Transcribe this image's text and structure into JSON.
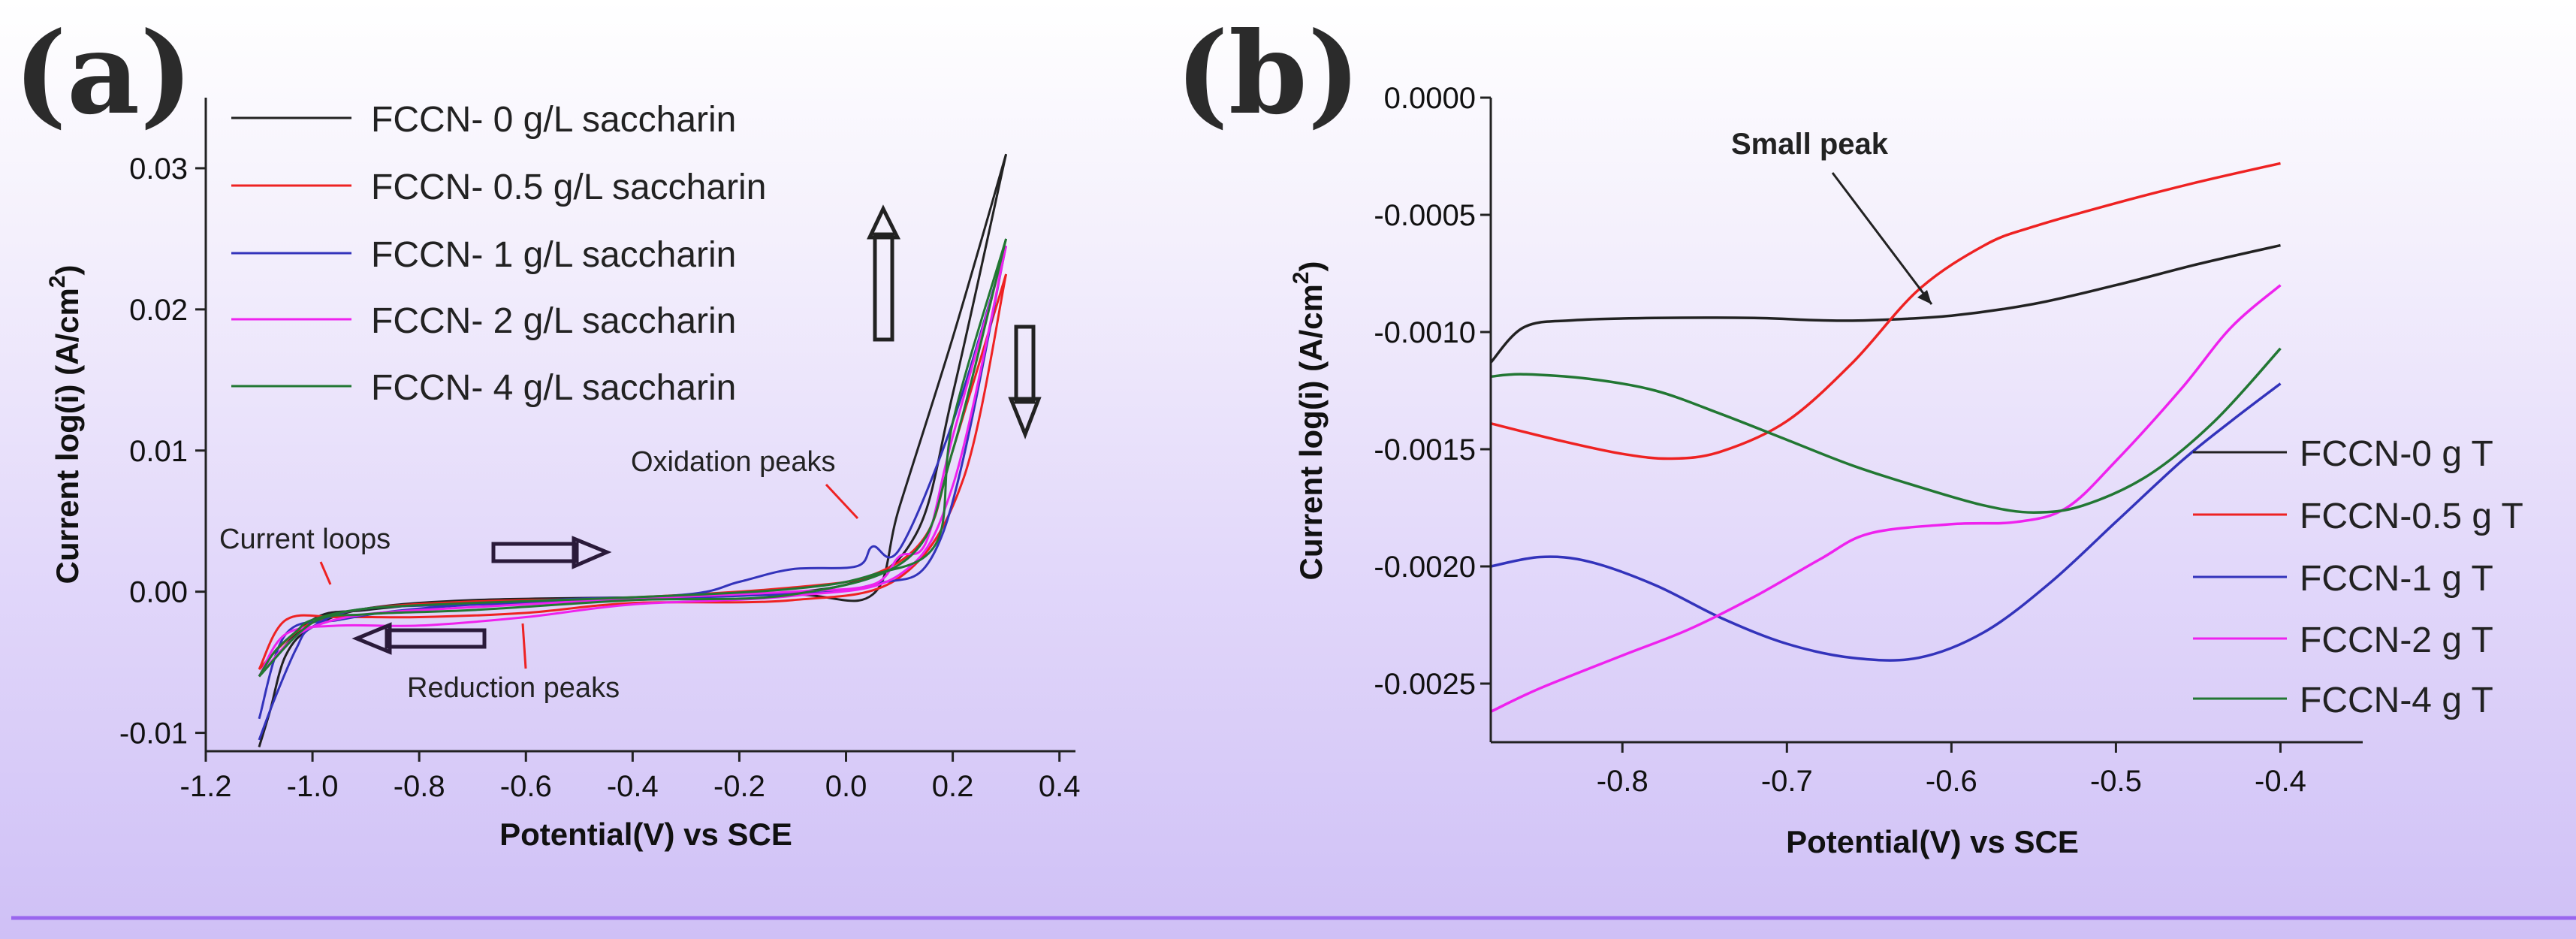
{
  "panels": {
    "a": {
      "label": "(a)",
      "chart_data": {
        "type": "line",
        "xlabel": "Potential(V)  vs SCE",
        "ylabel_main": "Current log(i)  (A/cm",
        "ylabel_sup": "2",
        "ylabel_end": ")",
        "xlim": [
          -1.2,
          0.43
        ],
        "ylim": [
          -0.0113,
          0.035
        ],
        "xticks": [
          "-1.2",
          "-1.0",
          "-0.8",
          "-0.6",
          "-0.4",
          "-0.2",
          "0.0",
          "0.2",
          "0.4"
        ],
        "yticks": [
          "-0.01",
          "0.00",
          "0.01",
          "0.02",
          "0.03"
        ],
        "legend_position": "top-left",
        "series": [
          {
            "name": "FCCN- 0 g/L saccharin",
            "color": "#222222",
            "forward": [
              [
                -1.1,
                -0.011
              ],
              [
                -1.08,
                -0.0085
              ],
              [
                -1.05,
                -0.0045
              ],
              [
                -1.0,
                -0.0025
              ],
              [
                -0.9,
                -0.0012
              ],
              [
                -0.7,
                -0.0006
              ],
              [
                -0.4,
                -0.0004
              ],
              [
                -0.1,
                -0.0002
              ],
              [
                0.05,
                -0.0002
              ],
              [
                0.1,
                0.006
              ],
              [
                0.2,
                0.018
              ],
              [
                0.3,
                0.031
              ]
            ],
            "reverse": [
              [
                0.3,
                0.031
              ],
              [
                0.2,
                0.014
              ],
              [
                0.13,
                0.004
              ],
              [
                0.0,
                0.0005
              ],
              [
                -0.3,
                -0.0003
              ],
              [
                -0.7,
                -0.0007
              ],
              [
                -0.9,
                -0.0013
              ],
              [
                -1.0,
                -0.002
              ],
              [
                -1.1,
                -0.006
              ]
            ]
          },
          {
            "name": "FCCN- 0.5 g/L saccharin",
            "color": "#ee2222",
            "forward": [
              [
                -1.1,
                -0.0055
              ],
              [
                -1.05,
                -0.0035
              ],
              [
                -1.0,
                -0.0022
              ],
              [
                -0.9,
                -0.0012
              ],
              [
                -0.7,
                -0.0007
              ],
              [
                -0.4,
                -0.0004
              ],
              [
                -0.1,
                0.0003
              ],
              [
                0.05,
                0.0012
              ],
              [
                0.15,
                0.004
              ],
              [
                0.2,
                0.01
              ],
              [
                0.3,
                0.0225
              ]
            ],
            "reverse": [
              [
                0.3,
                0.0225
              ],
              [
                0.22,
                0.008
              ],
              [
                0.1,
                0.001
              ],
              [
                -0.1,
                -0.0006
              ],
              [
                -0.4,
                -0.0008
              ],
              [
                -0.6,
                -0.0015
              ],
              [
                -0.8,
                -0.0018
              ],
              [
                -0.95,
                -0.0018
              ],
              [
                -1.05,
                -0.002
              ],
              [
                -1.1,
                -0.0055
              ]
            ]
          },
          {
            "name": "FCCN- 1 g/L saccharin",
            "color": "#3333bb",
            "forward": [
              [
                -1.1,
                -0.0105
              ],
              [
                -1.07,
                -0.0075
              ],
              [
                -1.03,
                -0.004
              ],
              [
                -1.0,
                -0.0025
              ],
              [
                -0.9,
                -0.0012
              ],
              [
                -0.6,
                -0.0008
              ],
              [
                -0.3,
                -0.0002
              ],
              [
                -0.2,
                0.0007
              ],
              [
                -0.1,
                0.0016
              ],
              [
                0.02,
                0.0018
              ],
              [
                0.05,
                0.0032
              ],
              [
                0.1,
                0.003
              ],
              [
                0.2,
                0.012
              ],
              [
                0.3,
                0.0245
              ]
            ],
            "reverse": [
              [
                0.3,
                0.0245
              ],
              [
                0.18,
                0.004
              ],
              [
                0.05,
                0.0005
              ],
              [
                -0.2,
                -0.0003
              ],
              [
                -0.5,
                -0.0005
              ],
              [
                -0.8,
                -0.0012
              ],
              [
                -0.95,
                -0.002
              ],
              [
                -1.05,
                -0.003
              ],
              [
                -1.1,
                -0.009
              ]
            ]
          },
          {
            "name": "FCCN- 2 g/L saccharin",
            "color": "#ee22ee",
            "forward": [
              [
                -1.1,
                -0.006
              ],
              [
                -1.05,
                -0.0038
              ],
              [
                -1.0,
                -0.0025
              ],
              [
                -0.9,
                -0.0016
              ],
              [
                -0.7,
                -0.0011
              ],
              [
                -0.4,
                -0.0005
              ],
              [
                -0.1,
                0.0
              ],
              [
                0.05,
                0.0005
              ],
              [
                0.1,
                0.0025
              ],
              [
                0.15,
                0.0035
              ],
              [
                0.2,
                0.011
              ],
              [
                0.3,
                0.0245
              ]
            ],
            "reverse": [
              [
                0.3,
                0.0245
              ],
              [
                0.2,
                0.0075
              ],
              [
                0.1,
                0.0012
              ],
              [
                -0.1,
                -0.0003
              ],
              [
                -0.4,
                -0.0009
              ],
              [
                -0.6,
                -0.0018
              ],
              [
                -0.8,
                -0.0024
              ],
              [
                -0.95,
                -0.0024
              ],
              [
                -1.05,
                -0.003
              ],
              [
                -1.1,
                -0.006
              ]
            ]
          },
          {
            "name": "FCCN- 4 g/L saccharin",
            "color": "#227733",
            "forward": [
              [
                -1.1,
                -0.006
              ],
              [
                -1.07,
                -0.0042
              ],
              [
                -1.03,
                -0.0028
              ],
              [
                -1.0,
                -0.002
              ],
              [
                -0.9,
                -0.0012
              ],
              [
                -0.7,
                -0.0008
              ],
              [
                -0.4,
                -0.0004
              ],
              [
                -0.1,
                0.0002
              ],
              [
                0.05,
                0.0012
              ],
              [
                0.17,
                0.0035
              ],
              [
                0.2,
                0.012
              ],
              [
                0.3,
                0.025
              ]
            ],
            "reverse": [
              [
                0.3,
                0.025
              ],
              [
                0.2,
                0.01
              ],
              [
                0.12,
                0.0025
              ],
              [
                -0.1,
                -0.0002
              ],
              [
                -0.4,
                -0.0006
              ],
              [
                -0.7,
                -0.0013
              ],
              [
                -0.9,
                -0.0016
              ],
              [
                -1.0,
                -0.0022
              ],
              [
                -1.1,
                -0.006
              ]
            ]
          }
        ],
        "annotations": {
          "current_loops": "Current loops",
          "reduction_peaks": "Reduction peaks",
          "oxidation_peaks": "Oxidation peaks"
        }
      }
    },
    "b": {
      "label": "(b)",
      "chart_data": {
        "type": "line",
        "xlabel": "Potential(V)  vs SCE",
        "ylabel_main": "Current log(i)  (A/cm",
        "ylabel_sup": "2",
        "ylabel_end": ")",
        "xlim": [
          -0.88,
          -0.35
        ],
        "ylim": [
          -0.00275,
          0.0
        ],
        "xticks": [
          "-0.8",
          "-0.7",
          "-0.6",
          "-0.5",
          "-0.4"
        ],
        "yticks": [
          "0.0000",
          "-0.0005",
          "-0.0010",
          "-0.0015",
          "-0.0020",
          "-0.0025"
        ],
        "legend_position": "bottom-right",
        "series": [
          {
            "name": "FCCN-0 g T",
            "color": "#222222",
            "points": [
              [
                -0.88,
                -0.00113
              ],
              [
                -0.86,
                -0.00098
              ],
              [
                -0.83,
                -0.00095
              ],
              [
                -0.78,
                -0.00094
              ],
              [
                -0.72,
                -0.00094
              ],
              [
                -0.68,
                -0.00095
              ],
              [
                -0.65,
                -0.00095
              ],
              [
                -0.6,
                -0.00093
              ],
              [
                -0.55,
                -0.00088
              ],
              [
                -0.5,
                -0.0008
              ],
              [
                -0.45,
                -0.00071
              ],
              [
                -0.4,
                -0.00063
              ]
            ]
          },
          {
            "name": "FCCN-0.5 g T",
            "color": "#ee2222",
            "points": [
              [
                -0.88,
                -0.00139
              ],
              [
                -0.84,
                -0.00146
              ],
              [
                -0.8,
                -0.00152
              ],
              [
                -0.77,
                -0.00154
              ],
              [
                -0.74,
                -0.00151
              ],
              [
                -0.7,
                -0.00138
              ],
              [
                -0.66,
                -0.00113
              ],
              [
                -0.62,
                -0.00082
              ],
              [
                -0.58,
                -0.00063
              ],
              [
                -0.55,
                -0.00055
              ],
              [
                -0.5,
                -0.00045
              ],
              [
                -0.45,
                -0.00036
              ],
              [
                -0.4,
                -0.00028
              ]
            ]
          },
          {
            "name": "FCCN-1 g T",
            "color": "#3333bb",
            "points": [
              [
                -0.88,
                -0.002
              ],
              [
                -0.85,
                -0.00196
              ],
              [
                -0.82,
                -0.00198
              ],
              [
                -0.78,
                -0.00208
              ],
              [
                -0.74,
                -0.00222
              ],
              [
                -0.7,
                -0.00233
              ],
              [
                -0.66,
                -0.00239
              ],
              [
                -0.62,
                -0.00239
              ],
              [
                -0.58,
                -0.00228
              ],
              [
                -0.54,
                -0.00207
              ],
              [
                -0.5,
                -0.00181
              ],
              [
                -0.46,
                -0.00155
              ],
              [
                -0.43,
                -0.00138
              ],
              [
                -0.4,
                -0.00122
              ]
            ]
          },
          {
            "name": "FCCN-2 g T",
            "color": "#ee22ee",
            "points": [
              [
                -0.88,
                -0.00262
              ],
              [
                -0.85,
                -0.00252
              ],
              [
                -0.8,
                -0.00238
              ],
              [
                -0.76,
                -0.00227
              ],
              [
                -0.72,
                -0.00213
              ],
              [
                -0.68,
                -0.00197
              ],
              [
                -0.65,
                -0.00186
              ],
              [
                -0.6,
                -0.00182
              ],
              [
                -0.56,
                -0.00181
              ],
              [
                -0.53,
                -0.00175
              ],
              [
                -0.5,
                -0.00155
              ],
              [
                -0.46,
                -0.00124
              ],
              [
                -0.43,
                -0.00098
              ],
              [
                -0.4,
                -0.0008
              ]
            ]
          },
          {
            "name": "FCCN-4 g T",
            "color": "#227733",
            "points": [
              [
                -0.88,
                -0.00119
              ],
              [
                -0.86,
                -0.00118
              ],
              [
                -0.82,
                -0.0012
              ],
              [
                -0.78,
                -0.00125
              ],
              [
                -0.74,
                -0.00135
              ],
              [
                -0.7,
                -0.00146
              ],
              [
                -0.66,
                -0.00157
              ],
              [
                -0.62,
                -0.00166
              ],
              [
                -0.58,
                -0.00174
              ],
              [
                -0.55,
                -0.00177
              ],
              [
                -0.52,
                -0.00174
              ],
              [
                -0.48,
                -0.00161
              ],
              [
                -0.44,
                -0.00138
              ],
              [
                -0.4,
                -0.00107
              ]
            ]
          }
        ],
        "annotations": {
          "small_peak": "Small peak"
        }
      }
    }
  }
}
